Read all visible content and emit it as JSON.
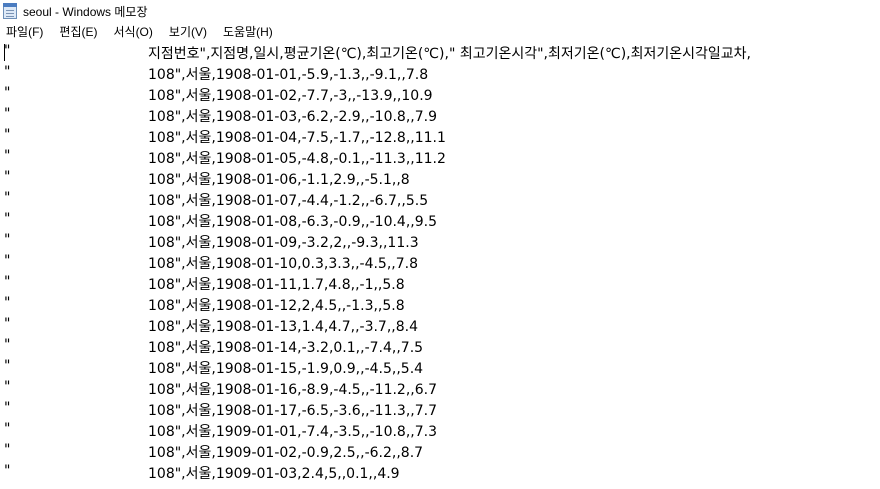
{
  "window": {
    "title": "seoul - Windows 메모장",
    "icon": "notepad-icon"
  },
  "menu": [
    {
      "label": "파일(F)"
    },
    {
      "label": "편집(E)"
    },
    {
      "label": "서식(O)"
    },
    {
      "label": "보기(V)"
    },
    {
      "label": "도움말(H)"
    }
  ],
  "editor": {
    "lines": [
      {
        "q": "\"",
        "text": "지점번호\",지점명,일시,평균기온(℃),최고기온(℃),\" 최고기온시각\",최저기온(℃),최저기온시각일교차,"
      },
      {
        "q": "\"",
        "text": "108\",서울,1908-01-01,-5.9,-1.3,,-9.1,,7.8"
      },
      {
        "q": "\"",
        "text": "108\",서울,1908-01-02,-7.7,-3,,-13.9,,10.9"
      },
      {
        "q": "\"",
        "text": "108\",서울,1908-01-03,-6.2,-2.9,,-10.8,,7.9"
      },
      {
        "q": "\"",
        "text": "108\",서울,1908-01-04,-7.5,-1.7,,-12.8,,11.1"
      },
      {
        "q": "\"",
        "text": "108\",서울,1908-01-05,-4.8,-0.1,,-11.3,,11.2"
      },
      {
        "q": "\"",
        "text": "108\",서울,1908-01-06,-1.1,2.9,,-5.1,,8"
      },
      {
        "q": "\"",
        "text": "108\",서울,1908-01-07,-4.4,-1.2,,-6.7,,5.5"
      },
      {
        "q": "\"",
        "text": "108\",서울,1908-01-08,-6.3,-0.9,,-10.4,,9.5"
      },
      {
        "q": "\"",
        "text": "108\",서울,1908-01-09,-3.2,2,,-9.3,,11.3"
      },
      {
        "q": "\"",
        "text": "108\",서울,1908-01-10,0.3,3.3,,-4.5,,7.8"
      },
      {
        "q": "\"",
        "text": "108\",서울,1908-01-11,1.7,4.8,,-1,,5.8"
      },
      {
        "q": "\"",
        "text": "108\",서울,1908-01-12,2,4.5,,-1.3,,5.8"
      },
      {
        "q": "\"",
        "text": "108\",서울,1908-01-13,1.4,4.7,,-3.7,,8.4"
      },
      {
        "q": "\"",
        "text": "108\",서울,1908-01-14,-3.2,0.1,,-7.4,,7.5"
      },
      {
        "q": "\"",
        "text": "108\",서울,1908-01-15,-1.9,0.9,,-4.5,,5.4"
      },
      {
        "q": "\"",
        "text": "108\",서울,1908-01-16,-8.9,-4.5,,-11.2,,6.7"
      },
      {
        "q": "\"",
        "text": "108\",서울,1908-01-17,-6.5,-3.6,,-11.3,,7.7"
      },
      {
        "q": "\"",
        "text": "108\",서울,1909-01-01,-7.4,-3.5,,-10.8,,7.3"
      },
      {
        "q": "\"",
        "text": "108\",서울,1909-01-02,-0.9,2.5,,-6.2,,8.7"
      },
      {
        "q": "\"",
        "text": "108\",서울,1909-01-03,2.4,5,,0.1,,4.9"
      }
    ]
  }
}
